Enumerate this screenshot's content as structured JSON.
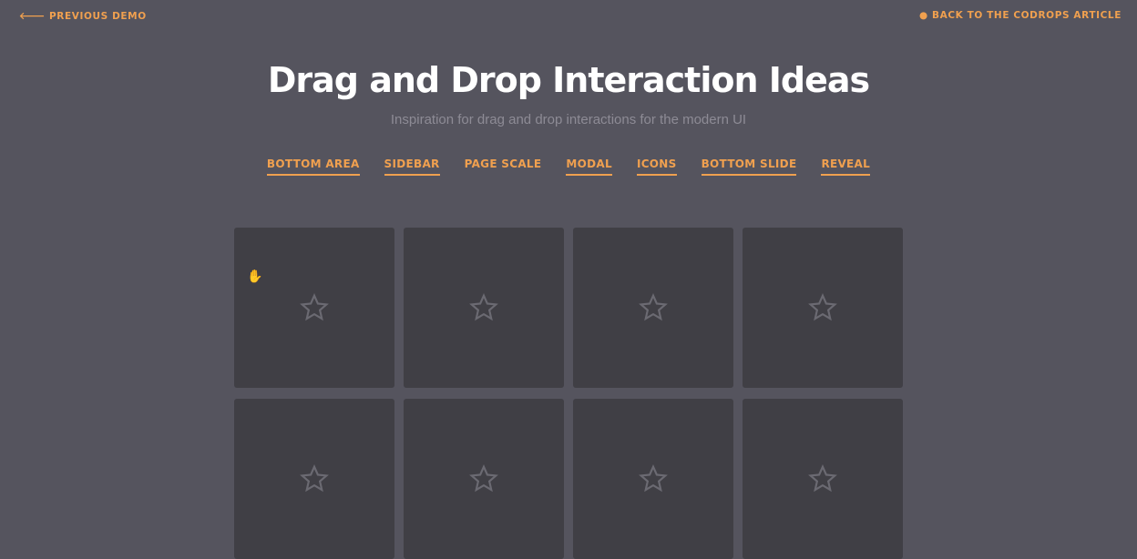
{
  "header": {
    "previous_demo": "Previous Demo",
    "back_article": "Back to the Codrops Article"
  },
  "title": "Drag and Drop Interaction Ideas",
  "subtitle": "Inspiration for drag and drop interactions for the modern UI",
  "nav": [
    {
      "label": "Bottom Area",
      "current": false
    },
    {
      "label": "Sidebar",
      "current": false
    },
    {
      "label": "Page Scale",
      "current": true
    },
    {
      "label": "Modal",
      "current": false
    },
    {
      "label": "Icons",
      "current": false
    },
    {
      "label": "Bottom Slide",
      "current": false
    },
    {
      "label": "Reveal",
      "current": false
    }
  ],
  "grid": {
    "items": 8,
    "icon": "star-outline-icon"
  },
  "colors": {
    "background": "#55545e",
    "card": "#403f45",
    "accent": "#f0a04f",
    "star": "#6b6a72"
  }
}
